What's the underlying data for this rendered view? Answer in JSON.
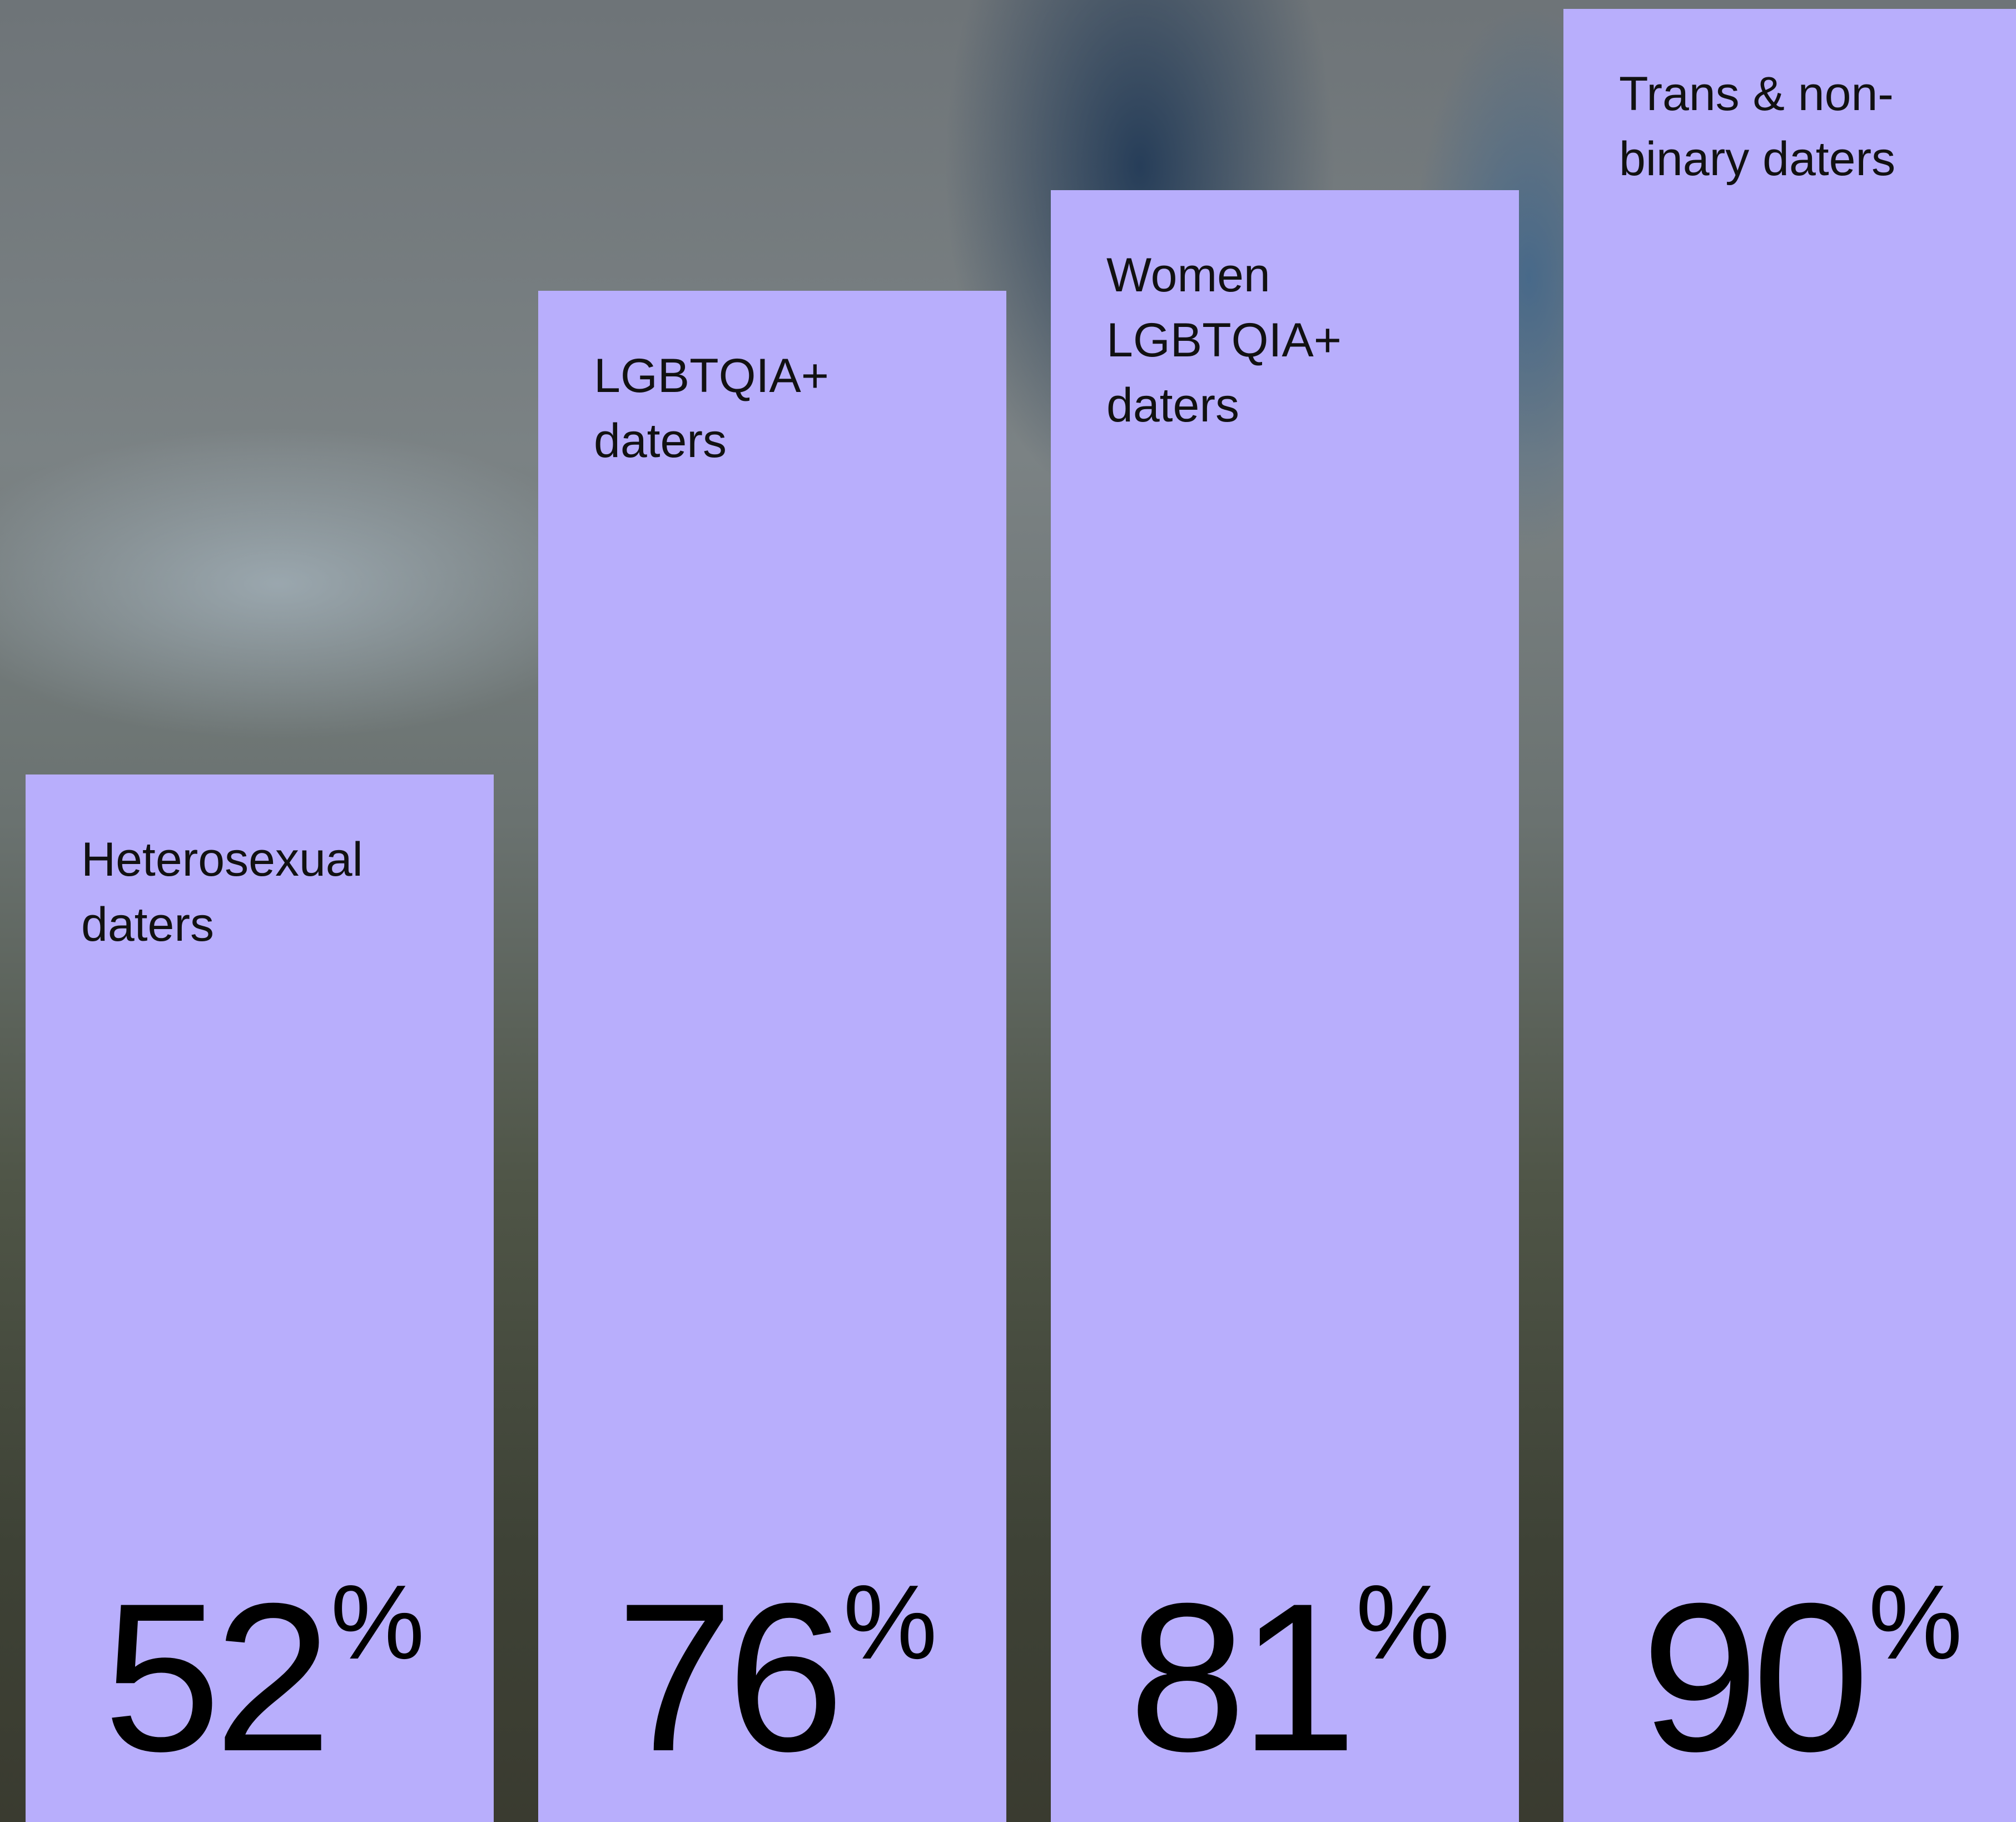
{
  "chart_data": {
    "type": "bar",
    "categories": [
      "Heterosexual\ndaters",
      "LGBTQIA+\ndaters",
      "Women\nLGBTQIA+\ndaters",
      "Trans & non-\nbinary daters"
    ],
    "values": [
      52,
      76,
      81,
      90
    ],
    "value_labels": [
      "52%",
      "76%",
      "81%",
      "90%"
    ],
    "color": "#b8aefc"
  }
}
